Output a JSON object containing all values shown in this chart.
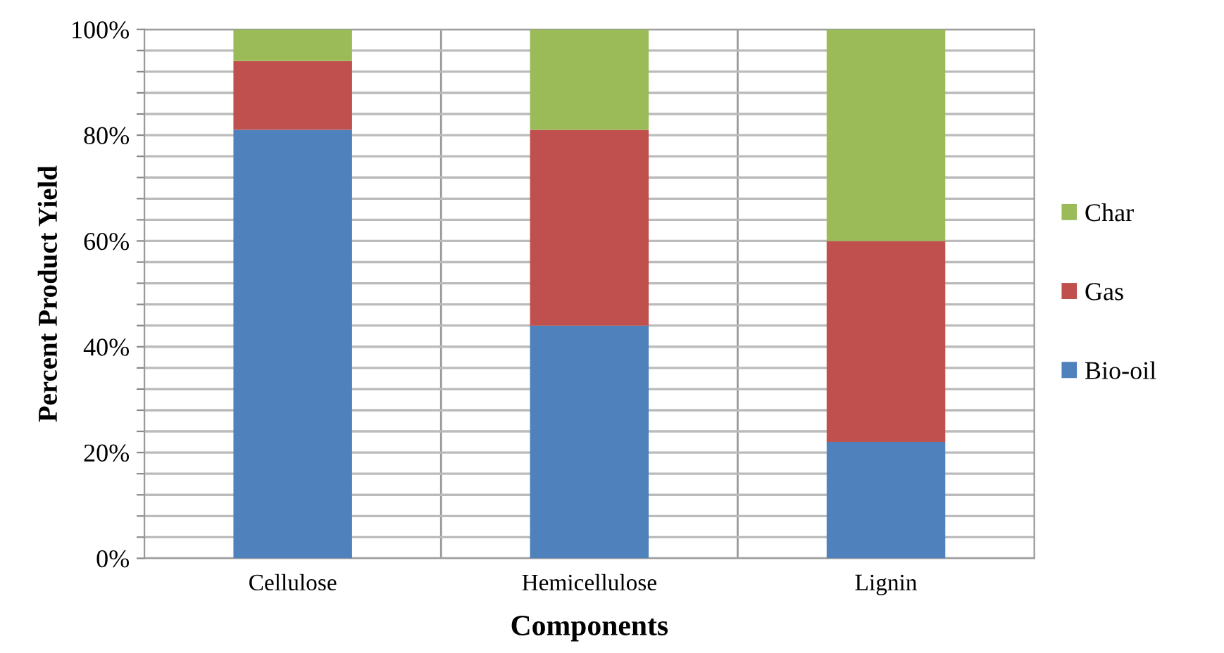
{
  "chart_data": {
    "type": "bar",
    "stacked": true,
    "xlabel": "Components",
    "ylabel": "Percent Product Yield",
    "categories": [
      "Cellulose",
      "Hemicellulose",
      "Lignin"
    ],
    "series": [
      {
        "name": "Bio-oil",
        "color": "#4f81bd",
        "values": [
          81,
          44,
          22
        ]
      },
      {
        "name": "Gas",
        "color": "#c0504d",
        "values": [
          13,
          37,
          38
        ]
      },
      {
        "name": "Char",
        "color": "#9bbb59",
        "values": [
          6,
          19,
          40
        ]
      }
    ],
    "ylim": [
      0,
      100
    ],
    "yticks": [
      {
        "value": 0,
        "label": "0%"
      },
      {
        "value": 4,
        "label": null
      },
      {
        "value": 8,
        "label": null
      },
      {
        "value": 12,
        "label": null
      },
      {
        "value": 16,
        "label": null
      },
      {
        "value": 20,
        "label": "20%"
      },
      {
        "value": 24,
        "label": null
      },
      {
        "value": 28,
        "label": null
      },
      {
        "value": 32,
        "label": null
      },
      {
        "value": 36,
        "label": null
      },
      {
        "value": 40,
        "label": "40%"
      },
      {
        "value": 44,
        "label": null
      },
      {
        "value": 48,
        "label": null
      },
      {
        "value": 52,
        "label": null
      },
      {
        "value": 56,
        "label": null
      },
      {
        "value": 60,
        "label": "60%"
      },
      {
        "value": 64,
        "label": null
      },
      {
        "value": 68,
        "label": null
      },
      {
        "value": 72,
        "label": null
      },
      {
        "value": 76,
        "label": null
      },
      {
        "value": 80,
        "label": "80%"
      },
      {
        "value": 84,
        "label": null
      },
      {
        "value": 88,
        "label": null
      },
      {
        "value": 92,
        "label": null
      },
      {
        "value": 96,
        "label": null
      },
      {
        "value": 100,
        "label": "100%"
      }
    ],
    "grid": true,
    "legend": "right"
  }
}
